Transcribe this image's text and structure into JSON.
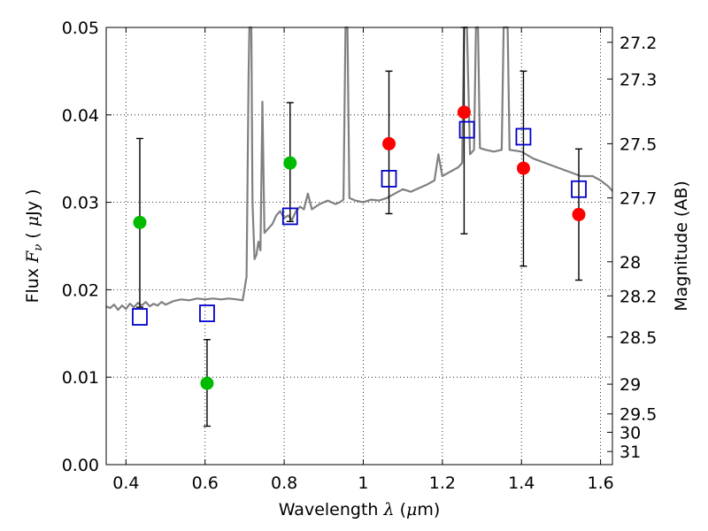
{
  "chart_data": {
    "type": "scatter",
    "title": "",
    "xlabel": "Wavelength  λ (μm)",
    "ylabel": "Flux  F_ν  ( μJy )",
    "ylabel_parts": {
      "prefix": "Flux ",
      "var": "F",
      "sub": "ν",
      "mid": "  ( ",
      "mu": "μ",
      "unit": "Jy )"
    },
    "xlabel_parts": {
      "prefix": "Wavelength  ",
      "var": "λ",
      "mid": " (",
      "mu": "μ",
      "unit": "m)"
    },
    "y2label": "Magnitude (AB)",
    "xlim": [
      0.35,
      1.63
    ],
    "ylim": [
      0.0,
      0.05
    ],
    "grid": true,
    "x_ticks": [
      0.4,
      0.6,
      0.8,
      1.0,
      1.2,
      1.4,
      1.6
    ],
    "x_tick_labels": [
      "0.4",
      "0.6",
      "0.8",
      "1",
      "1.2",
      "1.4",
      "1.6"
    ],
    "y_ticks": [
      0.0,
      0.01,
      0.02,
      0.03,
      0.04,
      0.05
    ],
    "y_tick_labels": [
      "0.00",
      "0.01",
      "0.02",
      "0.03",
      "0.04",
      "0.05"
    ],
    "y2_ticks": [
      {
        "label": "27.2",
        "flux": 0.0483
      },
      {
        "label": "27.3",
        "flux": 0.0441
      },
      {
        "label": "27.5",
        "flux": 0.0367
      },
      {
        "label": "27.7",
        "flux": 0.0305
      },
      {
        "label": "28",
        "flux": 0.0232
      },
      {
        "label": "28.2",
        "flux": 0.0193
      },
      {
        "label": "28.5",
        "flux": 0.0146
      },
      {
        "label": "29",
        "flux": 0.0092
      },
      {
        "label": "29.5",
        "flux": 0.0058
      },
      {
        "label": "30",
        "flux": 0.0037
      },
      {
        "label": "31",
        "flux": 0.0015
      }
    ],
    "series": [
      {
        "kind": "line",
        "color": "#808080",
        "points": [
          [
            0.35,
            0.0181
          ],
          [
            0.36,
            0.0179
          ],
          [
            0.37,
            0.0183
          ],
          [
            0.38,
            0.0177
          ],
          [
            0.39,
            0.0182
          ],
          [
            0.4,
            0.0178
          ],
          [
            0.41,
            0.0184
          ],
          [
            0.42,
            0.018
          ],
          [
            0.43,
            0.0185
          ],
          [
            0.44,
            0.0182
          ],
          [
            0.45,
            0.0186
          ],
          [
            0.46,
            0.0181
          ],
          [
            0.47,
            0.0184
          ],
          [
            0.48,
            0.0182
          ],
          [
            0.49,
            0.0186
          ],
          [
            0.5,
            0.0183
          ],
          [
            0.52,
            0.0187
          ],
          [
            0.54,
            0.0189
          ],
          [
            0.56,
            0.0188
          ],
          [
            0.58,
            0.019
          ],
          [
            0.6,
            0.0189
          ],
          [
            0.62,
            0.019
          ],
          [
            0.64,
            0.0189
          ],
          [
            0.66,
            0.019
          ],
          [
            0.68,
            0.0189
          ],
          [
            0.695,
            0.0188
          ],
          [
            0.705,
            0.0215
          ],
          [
            0.71,
            0.0445
          ],
          [
            0.712,
            0.05
          ],
          [
            0.717,
            0.05
          ],
          [
            0.72,
            0.03
          ],
          [
            0.725,
            0.0235
          ],
          [
            0.73,
            0.024
          ],
          [
            0.735,
            0.0255
          ],
          [
            0.74,
            0.0245
          ],
          [
            0.745,
            0.0415
          ],
          [
            0.75,
            0.0265
          ],
          [
            0.76,
            0.027
          ],
          [
            0.77,
            0.0275
          ],
          [
            0.78,
            0.0285
          ],
          [
            0.79,
            0.029
          ],
          [
            0.8,
            0.0282
          ],
          [
            0.81,
            0.0285
          ],
          [
            0.82,
            0.028
          ],
          [
            0.83,
            0.029
          ],
          [
            0.84,
            0.0295
          ],
          [
            0.85,
            0.0292
          ],
          [
            0.86,
            0.031
          ],
          [
            0.87,
            0.0292
          ],
          [
            0.88,
            0.0295
          ],
          [
            0.89,
            0.0298
          ],
          [
            0.9,
            0.03
          ],
          [
            0.91,
            0.0302
          ],
          [
            0.92,
            0.03
          ],
          [
            0.93,
            0.0298
          ],
          [
            0.94,
            0.03
          ],
          [
            0.95,
            0.0303
          ],
          [
            0.955,
            0.05
          ],
          [
            0.96,
            0.05
          ],
          [
            0.965,
            0.0305
          ],
          [
            0.98,
            0.0302
          ],
          [
            1.0,
            0.03
          ],
          [
            1.02,
            0.0303
          ],
          [
            1.04,
            0.0302
          ],
          [
            1.06,
            0.0305
          ],
          [
            1.08,
            0.031
          ],
          [
            1.1,
            0.0315
          ],
          [
            1.12,
            0.0312
          ],
          [
            1.14,
            0.0316
          ],
          [
            1.16,
            0.032
          ],
          [
            1.18,
            0.0325
          ],
          [
            1.19,
            0.0355
          ],
          [
            1.2,
            0.033
          ],
          [
            1.22,
            0.0335
          ],
          [
            1.24,
            0.034
          ],
          [
            1.25,
            0.0345
          ],
          [
            1.255,
            0.05
          ],
          [
            1.262,
            0.05
          ],
          [
            1.27,
            0.0355
          ],
          [
            1.28,
            0.036
          ],
          [
            1.285,
            0.05
          ],
          [
            1.29,
            0.05
          ],
          [
            1.295,
            0.0362
          ],
          [
            1.31,
            0.036
          ],
          [
            1.33,
            0.0358
          ],
          [
            1.35,
            0.036
          ],
          [
            1.355,
            0.05
          ],
          [
            1.365,
            0.05
          ],
          [
            1.37,
            0.036
          ],
          [
            1.4,
            0.0358
          ],
          [
            1.43,
            0.035
          ],
          [
            1.46,
            0.0345
          ],
          [
            1.49,
            0.034
          ],
          [
            1.52,
            0.0335
          ],
          [
            1.55,
            0.033
          ],
          [
            1.58,
            0.033
          ],
          [
            1.6,
            0.0325
          ],
          [
            1.62,
            0.0318
          ],
          [
            1.63,
            0.0313
          ]
        ]
      },
      {
        "kind": "points",
        "marker": "circle",
        "color": "#00bb00",
        "points": [
          [
            0.435,
            0.0277
          ],
          [
            0.605,
            0.0093
          ],
          [
            0.815,
            0.0345
          ]
        ],
        "errors": [
          [
            0.435,
            0.018,
            0.0373
          ],
          [
            0.605,
            0.0044,
            0.0143
          ],
          [
            0.815,
            0.0278,
            0.0414
          ]
        ]
      },
      {
        "kind": "points",
        "marker": "circle",
        "color": "#ff0000",
        "points": [
          [
            1.065,
            0.0367
          ],
          [
            1.255,
            0.0403
          ],
          [
            1.405,
            0.0339
          ],
          [
            1.545,
            0.0286
          ]
        ],
        "errors": [
          [
            1.065,
            0.0287,
            0.045
          ],
          [
            1.255,
            0.0264,
            0.05
          ],
          [
            1.405,
            0.0227,
            0.045
          ],
          [
            1.545,
            0.0211,
            0.0361
          ]
        ]
      },
      {
        "kind": "points",
        "marker": "open-square",
        "color": "#0000cc",
        "points": [
          [
            0.435,
            0.0169
          ],
          [
            0.605,
            0.0173
          ],
          [
            0.815,
            0.0284
          ],
          [
            1.065,
            0.0327
          ],
          [
            1.262,
            0.0383
          ],
          [
            1.405,
            0.0375
          ],
          [
            1.545,
            0.0315
          ]
        ]
      }
    ]
  }
}
